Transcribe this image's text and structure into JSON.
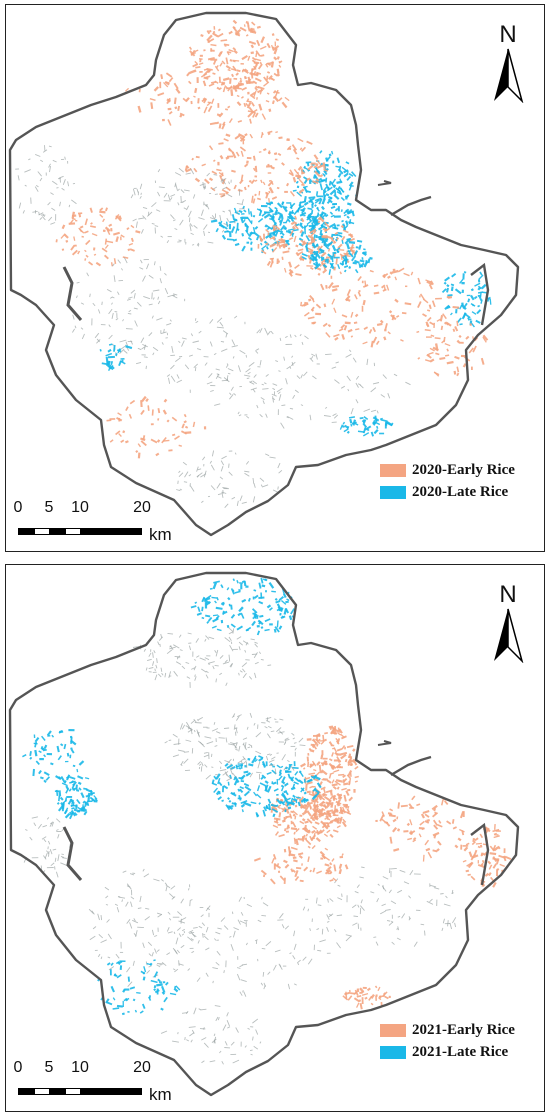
{
  "panels": [
    {
      "north_label": "N",
      "legend": [
        {
          "label": "2020-Early Rice",
          "color": "#f4a582"
        },
        {
          "label": "2020-Late Rice",
          "color": "#1ab8e8"
        }
      ],
      "scale": {
        "ticks": [
          "0",
          "5",
          "10",
          "20"
        ],
        "unit": "km"
      }
    },
    {
      "north_label": "N",
      "legend": [
        {
          "label": "2021-Early Rice",
          "color": "#f4a582"
        },
        {
          "label": "2021-Late Rice",
          "color": "#1ab8e8"
        }
      ],
      "scale": {
        "ticks": [
          "0",
          "5",
          "10",
          "20"
        ],
        "unit": "km"
      }
    }
  ],
  "colors": {
    "outline": "#555555",
    "early": "#f4a582",
    "late": "#1ab8e8",
    "grey": "#9aa3a3"
  }
}
